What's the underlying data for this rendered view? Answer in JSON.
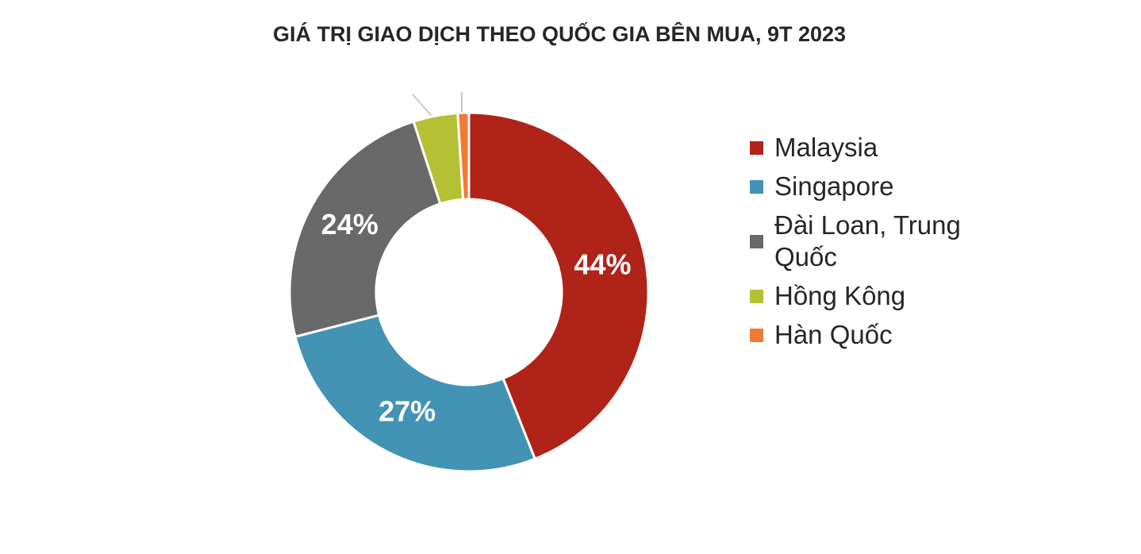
{
  "chart_data": {
    "type": "donut",
    "title": "GIÁ TRỊ GIAO DỊCH THEO QUỐC GIA BÊN MUA, 9T 2023",
    "categories": [
      "Malaysia",
      "Singapore",
      "Đài Loan, Trung Quốc",
      "Hồng Kông",
      "Hàn Quốc"
    ],
    "values": [
      44,
      27,
      24,
      4,
      1
    ],
    "value_labels": [
      "44%",
      "27%",
      "24%",
      null,
      null
    ],
    "colors": [
      "#b02318",
      "#4393b5",
      "#696969",
      "#b5c035",
      "#f07a35"
    ],
    "legend": "right"
  }
}
